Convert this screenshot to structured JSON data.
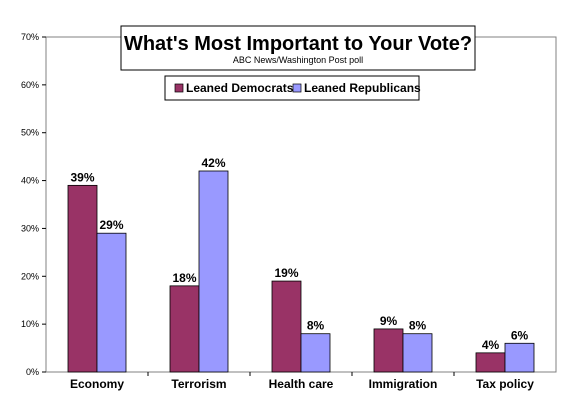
{
  "colors": {
    "democrats": "#993366",
    "republicans": "#9999ff",
    "axis": "#808080",
    "background": "#ffffff"
  },
  "chart_data": {
    "type": "bar",
    "title": "What's Most Important to Your Vote?",
    "subtitle": "ABC News/Washington  Post poll",
    "categories": [
      "Economy",
      "Terrorism",
      "Health care",
      "Immigration",
      "Tax policy"
    ],
    "series": [
      {
        "name": "Leaned Democrats",
        "values": [
          39,
          18,
          19,
          9,
          4
        ],
        "labels": [
          "39%",
          "18%",
          "19%",
          "9%",
          "4%"
        ]
      },
      {
        "name": "Leaned Republicans",
        "values": [
          29,
          42,
          8,
          8,
          6
        ],
        "labels": [
          "29%",
          "42%",
          "8%",
          "8%",
          "6%"
        ]
      }
    ],
    "ylim": [
      0,
      70
    ],
    "yticks": [
      0,
      10,
      20,
      30,
      40,
      50,
      60,
      70
    ],
    "ytick_labels": [
      "0%",
      "10%",
      "20%",
      "30%",
      "40%",
      "50%",
      "60%",
      "70%"
    ],
    "grid": false,
    "legend_position": "top-center"
  }
}
